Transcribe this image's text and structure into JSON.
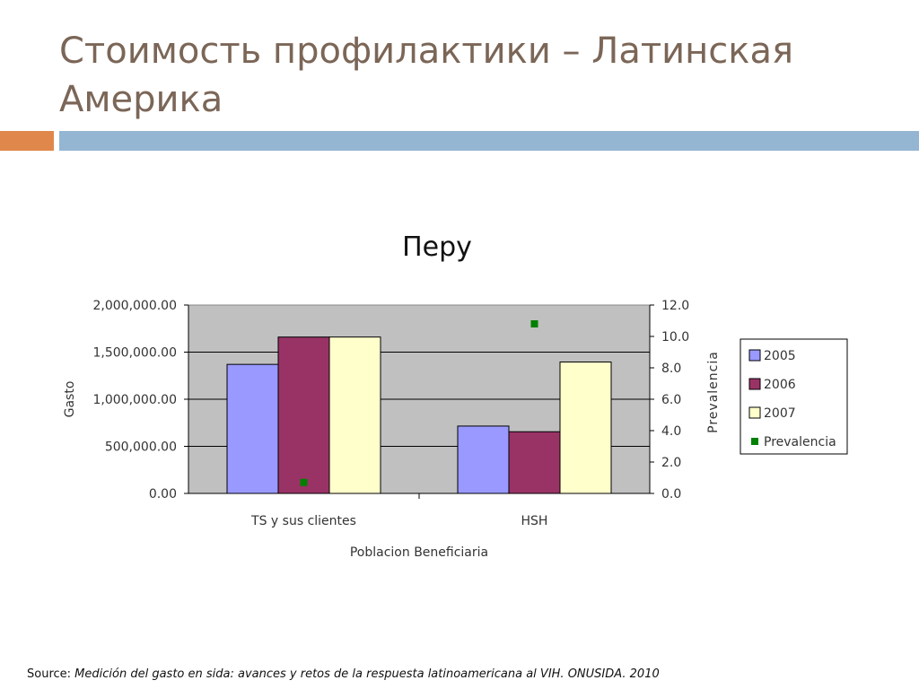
{
  "slide": {
    "title": "Стоимость профилактики – Латинская Америка",
    "source_label": "Source:",
    "source_text": "Medición del gasto en sida: avances y retos de la respuesta latinoamericana al VIH.  ONUSIDA. 2010"
  },
  "colors": {
    "title": "#7b6657",
    "accent_orange": "#e0884b",
    "accent_blue": "#94b6d2",
    "plot_background": "#c0c0c0",
    "series_2005": "#9999ff",
    "series_2006": "#993366",
    "series_2007": "#ffffcc",
    "prevalencia": "#008000"
  },
  "chart_data": {
    "type": "bar",
    "title": "Перу",
    "xlabel": "Poblacion Beneficiaria",
    "ylabel": "Gasto",
    "y2label": "Prevalencia",
    "categories": [
      "TS y sus clientes",
      "HSH"
    ],
    "series": [
      {
        "name": "2005",
        "values": [
          1370000,
          715000
        ],
        "axis": "left",
        "kind": "bar"
      },
      {
        "name": "2006",
        "values": [
          1660000,
          655000
        ],
        "axis": "left",
        "kind": "bar"
      },
      {
        "name": "2007",
        "values": [
          1660000,
          1395000
        ],
        "axis": "left",
        "kind": "bar"
      },
      {
        "name": "Prevalencia",
        "values": [
          0.7,
          10.8
        ],
        "axis": "right",
        "kind": "point"
      }
    ],
    "ylim": [
      0,
      2000000
    ],
    "y2lim": [
      0,
      12
    ],
    "yticks": [
      "0.00",
      "500,000.00",
      "1,000,000.00",
      "1,500,000.00",
      "2,000,000.00"
    ],
    "y2ticks": [
      "0.0",
      "2.0",
      "4.0",
      "6.0",
      "8.0",
      "10.0",
      "12.0"
    ],
    "grid": true,
    "legend": "right"
  }
}
